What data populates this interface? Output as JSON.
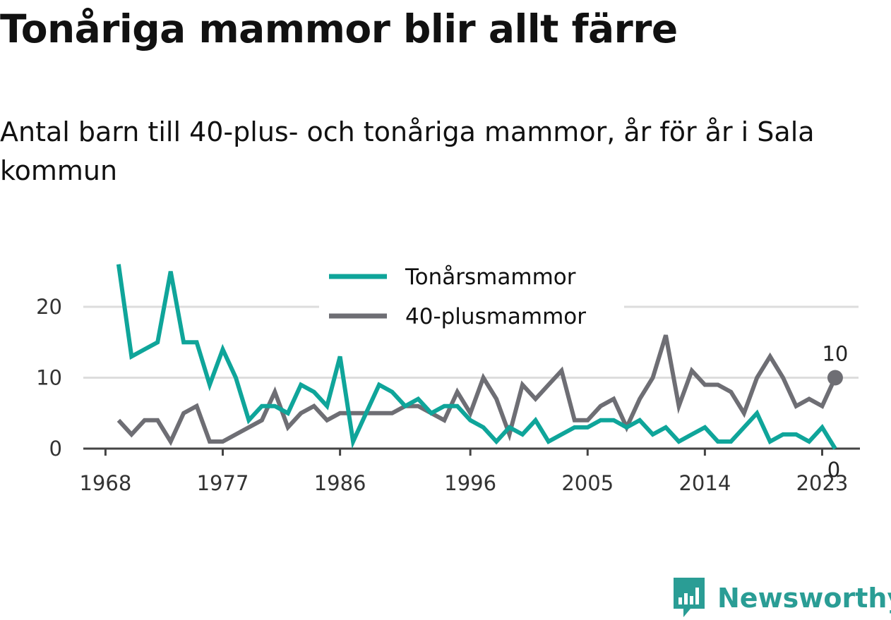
{
  "title": "Tonåriga mammor blir allt färre",
  "subtitle": "Antal barn till 40-plus- och tonåriga mammor, år för år i Sala kommun",
  "brand": "Newsworthy",
  "chart_data": {
    "type": "line",
    "x": [
      1969,
      1970,
      1971,
      1972,
      1973,
      1974,
      1975,
      1976,
      1977,
      1978,
      1979,
      1980,
      1981,
      1982,
      1983,
      1984,
      1985,
      1986,
      1987,
      1988,
      1989,
      1990,
      1991,
      1992,
      1993,
      1994,
      1995,
      1996,
      1997,
      1998,
      1999,
      2000,
      2001,
      2002,
      2003,
      2004,
      2005,
      2006,
      2007,
      2008,
      2009,
      2010,
      2011,
      2012,
      2013,
      2014,
      2015,
      2016,
      2017,
      2018,
      2019,
      2020,
      2021,
      2022,
      2023,
      2024
    ],
    "series": [
      {
        "name": "Tonårsmammor",
        "color": "#0fa59a",
        "values": [
          26,
          13,
          14,
          15,
          25,
          15,
          15,
          9,
          14,
          10,
          4,
          6,
          6,
          5,
          9,
          8,
          6,
          13,
          1,
          5,
          9,
          8,
          6,
          7,
          5,
          6,
          6,
          4,
          3,
          1,
          3,
          2,
          4,
          1,
          2,
          3,
          3,
          4,
          4,
          3,
          4,
          2,
          3,
          1,
          2,
          3,
          1,
          1,
          3,
          5,
          1,
          2,
          2,
          1,
          3,
          0
        ]
      },
      {
        "name": "40-plusmammor",
        "color": "#6e6e74",
        "values": [
          4,
          2,
          4,
          4,
          1,
          5,
          6,
          1,
          1,
          2,
          3,
          4,
          8,
          3,
          5,
          6,
          4,
          5,
          5,
          5,
          5,
          5,
          6,
          6,
          5,
          4,
          8,
          5,
          10,
          7,
          2,
          9,
          7,
          9,
          11,
          4,
          4,
          6,
          7,
          3,
          7,
          10,
          16,
          6,
          11,
          9,
          9,
          8,
          5,
          10,
          13,
          10,
          6,
          7,
          6,
          10
        ]
      }
    ],
    "x_ticks": [
      "1968",
      "1977",
      "1986",
      "1996",
      "2005",
      "2014",
      "2023"
    ],
    "y_ticks": [
      "0",
      "10",
      "20"
    ],
    "ylim": [
      0,
      26
    ],
    "end_labels": {
      "Tonårsmammor": "0",
      "40-plusmammor": "10"
    },
    "grid": true,
    "legend_position": "top-center"
  }
}
